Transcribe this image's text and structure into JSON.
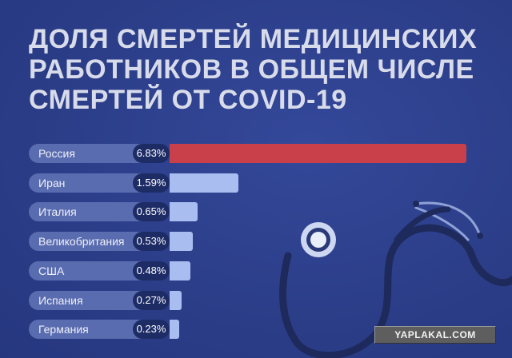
{
  "title_lines": [
    "ДОЛЯ СМЕРТЕЙ МЕДИЦИНСКИХ",
    "РАБОТНИКОВ В ОБЩЕМ ЧИСЛЕ",
    "СМЕРТЕЙ ОТ COVID-19"
  ],
  "watermark": "YAPLAKAL.COM",
  "colors": {
    "background": "#2c3f8c",
    "highlight_bar": "#c9404a",
    "bar": "#a9bdf0",
    "label_pill": "#5a6cb0",
    "value_pill": "#1e2c66"
  },
  "chart_data": {
    "type": "bar",
    "orientation": "horizontal",
    "title": "ДОЛЯ СМЕРТЕЙ МЕДИЦИНСКИХ РАБОТНИКОВ В ОБЩЕМ ЧИСЛЕ СМЕРТЕЙ ОТ COVID-19",
    "categories": [
      "Россия",
      "Иран",
      "Италия",
      "Великобритания",
      "США",
      "Испания",
      "Германия"
    ],
    "values": [
      6.83,
      1.59,
      0.65,
      0.53,
      0.48,
      0.27,
      0.23
    ],
    "value_labels": [
      "6.83%",
      "1.59%",
      "0.65%",
      "0.53%",
      "0.48%",
      "0.27%",
      "0.23%"
    ],
    "unit": "%",
    "highlight_index": 0,
    "xlim": [
      0,
      6.83
    ],
    "grid": false,
    "legend": "none"
  }
}
